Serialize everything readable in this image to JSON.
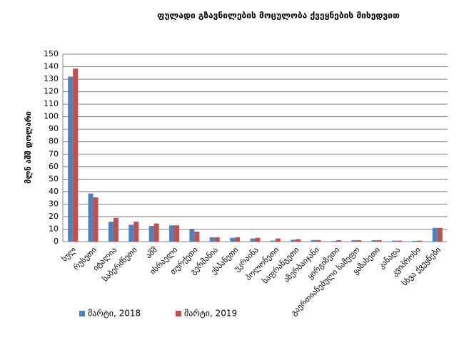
{
  "chart_data": {
    "type": "bar",
    "title": "ფულადი გზავნილების მოცულობა ქვეყნების მიხედვით",
    "y_label": "მლნ აშშ დოლარი",
    "categories": [
      "სულ",
      "რუსეთი",
      "იტალია",
      "საბერძნეთი",
      "აშშ",
      "ისრაელი",
      "თურქეთი",
      "გერმანია",
      "ესპანეთი",
      "უკრაინა",
      "პოლონეთი",
      "საფრანგეთი",
      "აზერბაიჯანი",
      "ყირგიზეთი",
      "გაერთიანებული სამეფო",
      "ყაზახეთი",
      "კანადა",
      "კვიპროსი",
      "სხვა ქვეყნები"
    ],
    "series": [
      {
        "name": "მარტი, 2018",
        "color": "#4f81bd",
        "values": [
          132,
          38.5,
          16,
          13.5,
          12.5,
          13,
          10,
          3.5,
          3,
          2.5,
          0.8,
          1.5,
          1.3,
          0.5,
          1.2,
          1.2,
          0.8,
          0.6,
          11
        ]
      },
      {
        "name": "მარტი, 2019",
        "color": "#c0504d",
        "values": [
          138.5,
          35.5,
          19,
          16,
          14.5,
          13,
          8,
          3.5,
          3.5,
          3,
          2.5,
          2,
          1.3,
          1.2,
          1.2,
          1.2,
          0.8,
          0.8,
          11
        ]
      }
    ],
    "ylim": [
      0,
      150
    ],
    "yticks": [
      0,
      10,
      20,
      30,
      40,
      50,
      60,
      70,
      80,
      90,
      100,
      110,
      120,
      130,
      140,
      150
    ],
    "grid": true,
    "legend": "bottom"
  }
}
